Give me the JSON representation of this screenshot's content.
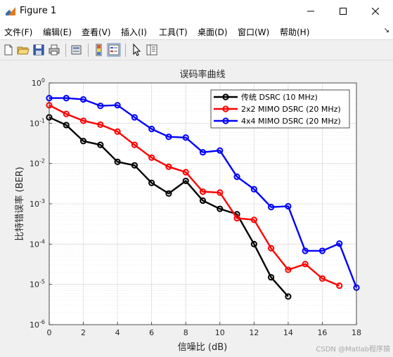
{
  "window": {
    "title": "Figure 1",
    "controls": {
      "minimize": "—",
      "maximize": "☐",
      "close": "✕"
    }
  },
  "menu": {
    "items": [
      "文件(F)",
      "编辑(E)",
      "查看(V)",
      "插入(I)",
      "工具(T)",
      "桌面(D)",
      "窗口(W)",
      "帮助(H)"
    ]
  },
  "toolbar": {
    "icons": [
      "new-figure-icon",
      "open-file-icon",
      "save-icon",
      "print-icon",
      "print-preview-icon",
      "colorbar-icon",
      "legend-icon",
      "pointer-icon",
      "property-inspector-icon"
    ]
  },
  "chart_data": {
    "type": "line",
    "title": "误码率曲线",
    "xlabel": "信噪比 (dB)",
    "ylabel": "比特错误率 (BER)",
    "xlim": [
      0,
      18
    ],
    "ylim": [
      1e-06,
      1
    ],
    "yscale": "log",
    "grid": true,
    "minor_grid": true,
    "legend_position": "top-right",
    "x_ticks": [
      0,
      2,
      4,
      6,
      8,
      10,
      12,
      14,
      16,
      18
    ],
    "y_ticks": [
      {
        "value": 1e-06,
        "exp": "-6"
      },
      {
        "value": 1e-05,
        "exp": "-5"
      },
      {
        "value": 0.0001,
        "exp": "-4"
      },
      {
        "value": 0.001,
        "exp": "-3"
      },
      {
        "value": 0.01,
        "exp": "-2"
      },
      {
        "value": 0.1,
        "exp": "-1"
      },
      {
        "value": 1,
        "exp": "0"
      }
    ],
    "series": [
      {
        "name": "传统 DSRC (10 MHz)",
        "color": "#000000",
        "x": [
          0,
          1,
          2,
          3,
          4,
          5,
          6,
          7,
          8,
          9,
          10,
          11,
          12,
          13,
          14
        ],
        "y": [
          0.14,
          0.09,
          0.036,
          0.029,
          0.011,
          0.009,
          0.0033,
          0.0018,
          0.0037,
          0.0012,
          0.00075,
          0.00055,
          0.0001,
          1.5e-05,
          5e-06
        ]
      },
      {
        "name": "2x2 MIMO DSRC (20 MHz)",
        "color": "#ff0000",
        "x": [
          0,
          1,
          2,
          3,
          4,
          5,
          6,
          7,
          8,
          9,
          10,
          11,
          12,
          13,
          14,
          15,
          16,
          17
        ],
        "y": [
          0.28,
          0.17,
          0.115,
          0.092,
          0.062,
          0.029,
          0.014,
          0.0083,
          0.0061,
          0.002,
          0.0019,
          0.00044,
          0.0004,
          7.9e-05,
          2.3e-05,
          3.2e-05,
          1.4e-05,
          9.3e-06
        ]
      },
      {
        "name": "4x4 MIMO DSRC (20 MHz)",
        "color": "#0000ff",
        "x": [
          0,
          1,
          2,
          3,
          4,
          5,
          6,
          7,
          8,
          9,
          10,
          11,
          12,
          13,
          14,
          15,
          16,
          17,
          18
        ],
        "y": [
          0.42,
          0.42,
          0.39,
          0.27,
          0.28,
          0.14,
          0.072,
          0.046,
          0.044,
          0.019,
          0.021,
          0.0047,
          0.0023,
          0.00083,
          0.00087,
          6.8e-05,
          6.8e-05,
          0.000103,
          8.3e-06
        ]
      }
    ]
  },
  "watermark": "CSDN @Matlab程序猿"
}
